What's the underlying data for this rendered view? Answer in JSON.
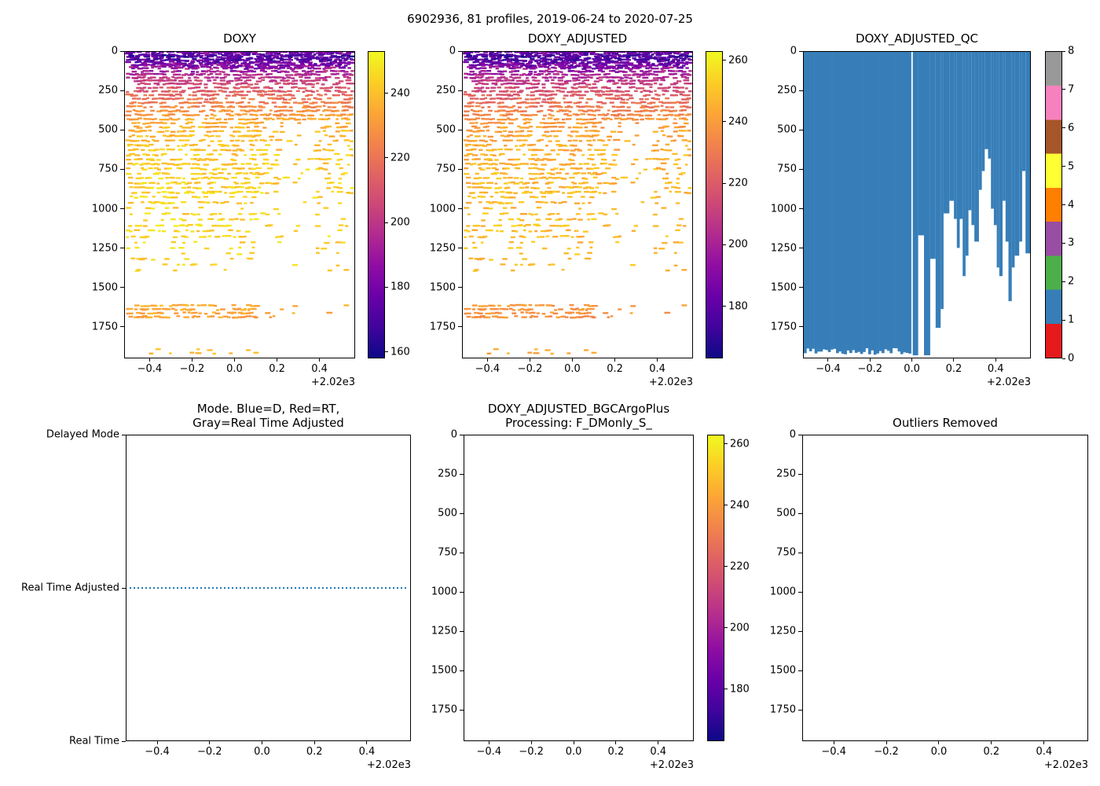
{
  "figure": {
    "suptitle": "6902936, 81 profiles, 2019-06-24 to 2020-07-25",
    "background": "#ffffff"
  },
  "axes_common": {
    "x_tick_labels": [
      "−0.4",
      "−0.2",
      "0.0",
      "0.2",
      "0.4"
    ],
    "x_tick_values": [
      -0.4,
      -0.2,
      0.0,
      0.2,
      0.4
    ],
    "x_offset_text": "+2.02e3",
    "x_range": [
      -0.52,
      0.568
    ],
    "y_tick_labels": [
      "0",
      "250",
      "500",
      "750",
      "1000",
      "1250",
      "1500",
      "1750"
    ],
    "y_tick_values": [
      0,
      250,
      500,
      750,
      1000,
      1250,
      1500,
      1750
    ],
    "y_range": [
      0,
      1950
    ]
  },
  "chart_data": [
    {
      "id": "doxy",
      "type": "scatter",
      "title": "DOXY",
      "colorbar": {
        "colormap": "plasma_r",
        "vmin": 158,
        "vmax": 253,
        "ticks": [
          240,
          220,
          200,
          180,
          160
        ]
      },
      "n_profiles": 81,
      "profile_x_range": [
        -0.505,
        0.555
      ],
      "depth_value_profile": [
        [
          0,
          228
        ],
        [
          25,
          240
        ],
        [
          55,
          236
        ],
        [
          85,
          228
        ],
        [
          120,
          220
        ],
        [
          160,
          213
        ],
        [
          200,
          206
        ],
        [
          250,
          198
        ],
        [
          300,
          191
        ],
        [
          360,
          184
        ],
        [
          420,
          178
        ],
        [
          500,
          173
        ],
        [
          600,
          170
        ],
        [
          800,
          167
        ],
        [
          1100,
          166
        ],
        [
          1400,
          168
        ],
        [
          1700,
          178
        ],
        [
          1950,
          172
        ]
      ],
      "value_noise": 6,
      "value_offset": 0,
      "density_bands": [
        [
          0,
          430,
          0.62
        ],
        [
          430,
          900,
          0.5
        ],
        [
          900,
          1250,
          0.3
        ],
        [
          1250,
          1405,
          0.16
        ]
      ],
      "sparse_gap_x_ranges": [
        [
          0.225,
          0.285
        ],
        [
          0.315,
          0.385
        ]
      ],
      "deep_band": {
        "levels": [
          1618,
          1642,
          1666,
          1690
        ],
        "x_dense_max": 0.12,
        "x_sparse_max": 0.3,
        "p_dense": 0.55,
        "p_sparse": 0.2,
        "p_far": 0.02
      },
      "bottom_band": {
        "levels": [
          1898,
          1920
        ],
        "x_max": 0.12,
        "p": 0.12
      },
      "seed": 7
    },
    {
      "id": "adj",
      "type": "scatter",
      "title": "DOXY_ADJUSTED",
      "colorbar": {
        "colormap": "plasma_r",
        "vmin": 163,
        "vmax": 263,
        "ticks": [
          260,
          240,
          220,
          200,
          180
        ]
      },
      "n_profiles": 81,
      "profile_x_range": [
        -0.505,
        0.555
      ],
      "depth_value_profile": [
        [
          0,
          228
        ],
        [
          25,
          240
        ],
        [
          55,
          236
        ],
        [
          85,
          228
        ],
        [
          120,
          220
        ],
        [
          160,
          213
        ],
        [
          200,
          206
        ],
        [
          250,
          198
        ],
        [
          300,
          191
        ],
        [
          360,
          184
        ],
        [
          420,
          178
        ],
        [
          500,
          173
        ],
        [
          600,
          170
        ],
        [
          800,
          167
        ],
        [
          1100,
          166
        ],
        [
          1400,
          168
        ],
        [
          1700,
          178
        ],
        [
          1950,
          172
        ]
      ],
      "value_noise": 6,
      "value_offset": 11,
      "density_bands": [
        [
          0,
          430,
          0.62
        ],
        [
          430,
          900,
          0.5
        ],
        [
          900,
          1250,
          0.3
        ],
        [
          1250,
          1405,
          0.16
        ]
      ],
      "sparse_gap_x_ranges": [
        [
          0.225,
          0.285
        ],
        [
          0.315,
          0.385
        ]
      ],
      "deep_band": {
        "levels": [
          1618,
          1642,
          1666,
          1690
        ],
        "x_dense_max": 0.12,
        "x_sparse_max": 0.3,
        "p_dense": 0.55,
        "p_sparse": 0.2,
        "p_far": 0.02
      },
      "bottom_band": {
        "levels": [
          1898,
          1920
        ],
        "x_max": 0.12,
        "p": 0.12
      },
      "seed": 7
    },
    {
      "id": "qc",
      "type": "filled-profile",
      "title": "DOXY_ADJUSTED_QC",
      "fill_color": "#377eb8",
      "colorbar": {
        "type": "categorical",
        "ticks": [
          0,
          1,
          2,
          3,
          4,
          5,
          6,
          7,
          8
        ],
        "colors": [
          "#e41a1c",
          "#377eb8",
          "#4daf4a",
          "#984ea3",
          "#ff7f00",
          "#ffff33",
          "#a65628",
          "#f781bf",
          "#999999"
        ]
      },
      "left_region": {
        "x0": -0.52,
        "x1": -0.004,
        "base_depth": 1912,
        "jitter": 44
      },
      "white_gap_x": [
        -0.004,
        0.004
      ],
      "columns": [
        [
          0.004,
          0.03,
          1935
        ],
        [
          0.03,
          0.058,
          1170
        ],
        [
          0.058,
          0.088,
          1935
        ],
        [
          0.088,
          0.114,
          1320
        ],
        [
          0.114,
          0.138,
          1760
        ],
        [
          0.138,
          0.152,
          1640
        ],
        [
          0.152,
          0.18,
          1030
        ],
        [
          0.18,
          0.202,
          950
        ],
        [
          0.202,
          0.216,
          1065
        ],
        [
          0.216,
          0.23,
          1250
        ],
        [
          0.23,
          0.244,
          1065
        ],
        [
          0.244,
          0.258,
          1430
        ],
        [
          0.258,
          0.272,
          1300
        ],
        [
          0.272,
          0.286,
          1010
        ],
        [
          0.286,
          0.3,
          1105
        ],
        [
          0.3,
          0.322,
          1210
        ],
        [
          0.322,
          0.336,
          880
        ],
        [
          0.336,
          0.35,
          760
        ],
        [
          0.35,
          0.366,
          620
        ],
        [
          0.366,
          0.38,
          680
        ],
        [
          0.38,
          0.394,
          1000
        ],
        [
          0.394,
          0.408,
          1105
        ],
        [
          0.408,
          0.42,
          1375
        ],
        [
          0.42,
          0.436,
          1430
        ],
        [
          0.436,
          0.45,
          950
        ],
        [
          0.45,
          0.464,
          1210
        ],
        [
          0.464,
          0.48,
          1590
        ],
        [
          0.48,
          0.494,
          1375
        ],
        [
          0.494,
          0.516,
          1300
        ],
        [
          0.516,
          0.53,
          1210
        ],
        [
          0.53,
          0.546,
          760
        ],
        [
          0.546,
          0.568,
          1285
        ]
      ],
      "seed": 3
    },
    {
      "id": "mode",
      "type": "line",
      "title": "Mode. Blue=D, Red=RT,\nGray=Real Time Adjusted",
      "y_tick_labels": [
        "Delayed Mode",
        "Real Time Adjusted",
        "Real Time"
      ],
      "series": [
        {
          "name": "mode-line",
          "y_category": "Real Time Adjusted",
          "style": "dotted",
          "color": "#1f77b4",
          "x_start": -0.505,
          "x_end": 0.555
        }
      ]
    },
    {
      "id": "bgc",
      "type": "scatter",
      "title": "DOXY_ADJUSTED_BGCArgoPlus\nProcessing: F_DMonly_S_",
      "empty": true,
      "colorbar": {
        "colormap": "plasma_r",
        "vmin": 163,
        "vmax": 263,
        "ticks": [
          260,
          240,
          220,
          200,
          180
        ]
      }
    },
    {
      "id": "outliers",
      "type": "scatter",
      "title": "Outliers Removed",
      "empty": true
    }
  ]
}
